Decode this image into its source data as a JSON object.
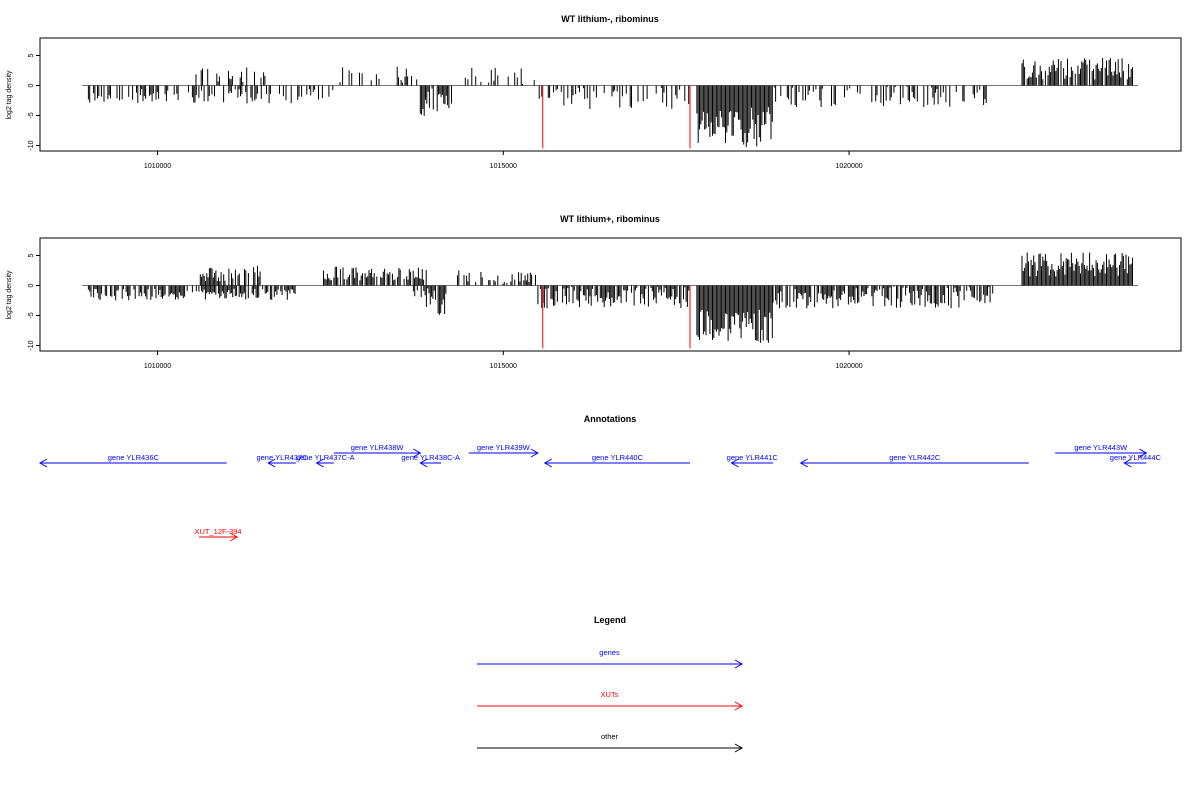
{
  "chart_data": [
    {
      "type": "bar",
      "title": "WT lithium-, ribominus",
      "xlabel": "",
      "ylabel": "log2 tag density",
      "xlim": [
        1008300,
        1024800
      ],
      "ylim": [
        -11,
        8
      ],
      "xticks": [
        1010000,
        1015000,
        1020000
      ],
      "xtick_labels": [
        "1010000",
        "1015000",
        "1020000"
      ],
      "yticks": [
        -10,
        -5,
        0,
        5
      ],
      "ytick_labels": [
        "-10",
        "-5",
        "0",
        "5"
      ],
      "grid": false,
      "series_color": "#000000",
      "segments": [
        {
          "from": 1009000,
          "to": 1012600,
          "mean": -1.8,
          "amp": 1.2,
          "density": 0.45
        },
        {
          "from": 1010500,
          "to": 1011600,
          "mean": 1.8,
          "amp": 1.2,
          "density": 0.35
        },
        {
          "from": 1012600,
          "to": 1013800,
          "mean": 1.8,
          "amp": 1.4,
          "density": 0.35
        },
        {
          "from": 1013800,
          "to": 1014300,
          "mean": -2.8,
          "amp": 2.5,
          "density": 0.8
        },
        {
          "from": 1014300,
          "to": 1015500,
          "mean": 1.5,
          "amp": 1.5,
          "density": 0.3
        },
        {
          "from": 1015500,
          "to": 1017700,
          "mean": -2.2,
          "amp": 1.8,
          "density": 0.4
        },
        {
          "from": 1017800,
          "to": 1018900,
          "mean": -7.0,
          "amp": 3.5,
          "density": 1.0
        },
        {
          "from": 1018900,
          "to": 1022000,
          "mean": -2.0,
          "amp": 1.8,
          "density": 0.4
        },
        {
          "from": 1022500,
          "to": 1024100,
          "mean": 2.8,
          "amp": 1.8,
          "density": 0.8
        }
      ],
      "highlights": [
        {
          "x": 1015570,
          "y": -10.5,
          "color": "#ff0000"
        },
        {
          "x": 1017700,
          "y": -10.5,
          "color": "#ff0000"
        }
      ],
      "seed": 11
    },
    {
      "type": "bar",
      "title": "WT lithium+, ribominus",
      "xlabel": "",
      "ylabel": "log2 tag density",
      "xlim": [
        1008300,
        1024800
      ],
      "ylim": [
        -11,
        8
      ],
      "xticks": [
        1010000,
        1015000,
        1020000
      ],
      "xtick_labels": [
        "1010000",
        "1015000",
        "1020000"
      ],
      "yticks": [
        -10,
        -5,
        0,
        5
      ],
      "ytick_labels": [
        "-10",
        "-5",
        "0",
        "5"
      ],
      "grid": false,
      "series_color": "#000000",
      "segments": [
        {
          "from": 1009000,
          "to": 1012000,
          "mean": -1.5,
          "amp": 1.0,
          "density": 0.8
        },
        {
          "from": 1010600,
          "to": 1011500,
          "mean": 2.0,
          "amp": 1.3,
          "density": 0.5
        },
        {
          "from": 1012400,
          "to": 1013900,
          "mean": 2.0,
          "amp": 1.2,
          "density": 0.8
        },
        {
          "from": 1013700,
          "to": 1014200,
          "mean": -2.5,
          "amp": 2.5,
          "density": 0.8
        },
        {
          "from": 1014300,
          "to": 1015500,
          "mean": 1.5,
          "amp": 1.2,
          "density": 0.5
        },
        {
          "from": 1015500,
          "to": 1017700,
          "mean": -2.0,
          "amp": 1.8,
          "density": 0.8
        },
        {
          "from": 1017800,
          "to": 1018900,
          "mean": -7.0,
          "amp": 3.0,
          "density": 1.0
        },
        {
          "from": 1018900,
          "to": 1022100,
          "mean": -2.0,
          "amp": 1.8,
          "density": 0.8
        },
        {
          "from": 1022500,
          "to": 1024100,
          "mean": 3.5,
          "amp": 2.0,
          "density": 1.0
        }
      ],
      "highlights": [
        {
          "x": 1015570,
          "y": -10.5,
          "color": "#ff0000"
        },
        {
          "x": 1017700,
          "y": -10.5,
          "color": "#ff0000"
        }
      ],
      "seed": 29
    }
  ],
  "annotations": {
    "title": "Annotations",
    "xlim": [
      1008300,
      1024800
    ],
    "features": [
      {
        "label": "gene YLR436C",
        "start": 1008300,
        "end": 1011000,
        "strand": "-",
        "row": 0,
        "color": "#0000ff"
      },
      {
        "label": "gene YLR437C",
        "start": 1011600,
        "end": 1012000,
        "strand": "-",
        "row": 0,
        "color": "#0000ff"
      },
      {
        "label": "gene YLR437C-A",
        "start": 1012300,
        "end": 1012550,
        "strand": "-",
        "row": 0,
        "color": "#0000ff"
      },
      {
        "label": "gene YLR438W",
        "start": 1012550,
        "end": 1013800,
        "strand": "+",
        "row": 1,
        "color": "#0000ff"
      },
      {
        "label": "gene YLR438C-A",
        "start": 1013800,
        "end": 1014100,
        "strand": "-",
        "row": 0,
        "color": "#0000ff"
      },
      {
        "label": "gene YLR439W",
        "start": 1014500,
        "end": 1015500,
        "strand": "+",
        "row": 1,
        "color": "#0000ff"
      },
      {
        "label": "gene YLR440C",
        "start": 1015600,
        "end": 1017700,
        "strand": "-",
        "row": 0,
        "color": "#0000ff"
      },
      {
        "label": "gene YLR441C",
        "start": 1018300,
        "end": 1018900,
        "strand": "-",
        "row": 0,
        "color": "#0000ff"
      },
      {
        "label": "gene YLR442C",
        "start": 1019300,
        "end": 1022600,
        "strand": "-",
        "row": 0,
        "color": "#0000ff"
      },
      {
        "label": "gene YLR443W",
        "start": 1022980,
        "end": 1024300,
        "strand": "+",
        "row": 1,
        "color": "#0000ff"
      },
      {
        "label": "gene YLR444C",
        "start": 1023980,
        "end": 1024300,
        "strand": "-",
        "row": 0,
        "color": "#0000ff"
      },
      {
        "label": "XUT_12F-394",
        "start": 1010600,
        "end": 1011150,
        "strand": "+",
        "row": 2,
        "color": "#ff0000"
      }
    ]
  },
  "legend": {
    "title": "Legend",
    "items": [
      {
        "label": "genes",
        "color": "#0000ff"
      },
      {
        "label": "XUTs",
        "color": "#ff0000"
      },
      {
        "label": "other",
        "color": "#000000"
      }
    ]
  }
}
